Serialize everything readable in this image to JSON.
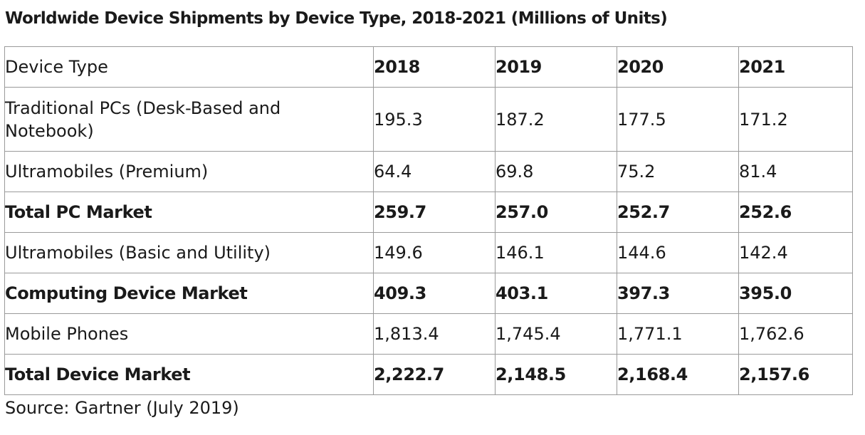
{
  "title": "Worldwide Device Shipments by Device Type, 2018-2021 (Millions of Units)",
  "source": "Source: Gartner (July 2019)",
  "chart_data": {
    "type": "table",
    "columns": [
      "Device Type",
      "2018",
      "2019",
      "2020",
      "2021"
    ],
    "rows": [
      {
        "label": "Traditional PCs (Desk-Based and Notebook)",
        "values": [
          "195.3",
          "187.2",
          "177.5",
          "171.2"
        ],
        "bold": false
      },
      {
        "label": "Ultramobiles (Premium)",
        "values": [
          "64.4",
          "69.8",
          "75.2",
          "81.4"
        ],
        "bold": false
      },
      {
        "label": "Total PC Market",
        "values": [
          "259.7",
          "257.0",
          "252.7",
          "252.6"
        ],
        "bold": true
      },
      {
        "label": "Ultramobiles (Basic and Utility)",
        "values": [
          "149.6",
          "146.1",
          "144.6",
          "142.4"
        ],
        "bold": false
      },
      {
        "label": "Computing Device Market",
        "values": [
          "409.3",
          "403.1",
          "397.3",
          "395.0"
        ],
        "bold": true
      },
      {
        "label": "Mobile Phones",
        "values": [
          "1,813.4",
          "1,745.4",
          "1,771.1",
          "1,762.6"
        ],
        "bold": false
      },
      {
        "label": "Total Device Market",
        "values": [
          "2,222.7",
          "2,148.5",
          "2,168.4",
          "2,157.6"
        ],
        "bold": true
      }
    ]
  }
}
